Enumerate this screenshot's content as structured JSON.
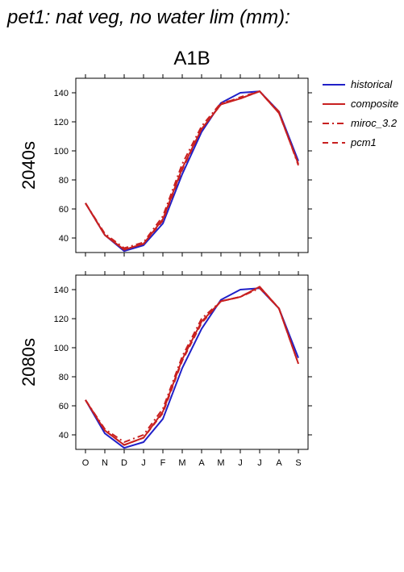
{
  "page_title": "pet1: nat veg, no water lim (mm):",
  "chart_data": {
    "type": "line",
    "scenario": "A1B",
    "categories": [
      "O",
      "N",
      "D",
      "J",
      "F",
      "M",
      "A",
      "M",
      "J",
      "J",
      "A",
      "S"
    ],
    "ylim": [
      30,
      150
    ],
    "yticks": [
      40,
      60,
      80,
      100,
      120,
      140
    ],
    "grid": false,
    "legend_position": "right",
    "colors": {
      "historical": "#2020c8",
      "model": "#c82020"
    },
    "panels": [
      {
        "ylabel": "2040s",
        "series": [
          {
            "name": "historical",
            "style": "solid",
            "color": "#2020c8",
            "values": [
              64,
              42,
              31,
              35,
              50,
              84,
              113,
              133,
              140,
              141,
              127,
              93
            ]
          },
          {
            "name": "composite",
            "style": "solid",
            "color": "#c82020",
            "values": [
              64,
              42,
              32,
              36,
              53,
              88,
              115,
              132,
              136,
              141,
              126,
              91
            ]
          },
          {
            "name": "miroc_3.2",
            "style": "dashdot",
            "color": "#c82020",
            "values": [
              64,
              43,
              33,
              37,
              55,
              91,
              117,
              133,
              136,
              141,
              127,
              90
            ]
          },
          {
            "name": "pcm1",
            "style": "dashed",
            "color": "#c82020",
            "values": [
              64,
              42,
              32,
              36,
              52,
              87,
              115,
              132,
              137,
              141,
              126,
              91
            ]
          }
        ]
      },
      {
        "ylabel": "2080s",
        "series": [
          {
            "name": "historical",
            "style": "solid",
            "color": "#2020c8",
            "values": [
              64,
              41,
              31,
              35,
              51,
              86,
              113,
              133,
              140,
              141,
              127,
              93
            ]
          },
          {
            "name": "composite",
            "style": "solid",
            "color": "#c82020",
            "values": [
              64,
              43,
              33,
              38,
              56,
              92,
              118,
              132,
              135,
              142,
              127,
              89
            ]
          },
          {
            "name": "miroc_3.2",
            "style": "dashdot",
            "color": "#c82020",
            "values": [
              64,
              44,
              35,
              40,
              58,
              94,
              120,
              132,
              135,
              141,
              127,
              89
            ]
          },
          {
            "name": "pcm1",
            "style": "dashed",
            "color": "#c82020",
            "values": [
              64,
              43,
              33,
              38,
              55,
              91,
              117,
              132,
              135,
              142,
              127,
              89
            ]
          }
        ]
      }
    ]
  }
}
